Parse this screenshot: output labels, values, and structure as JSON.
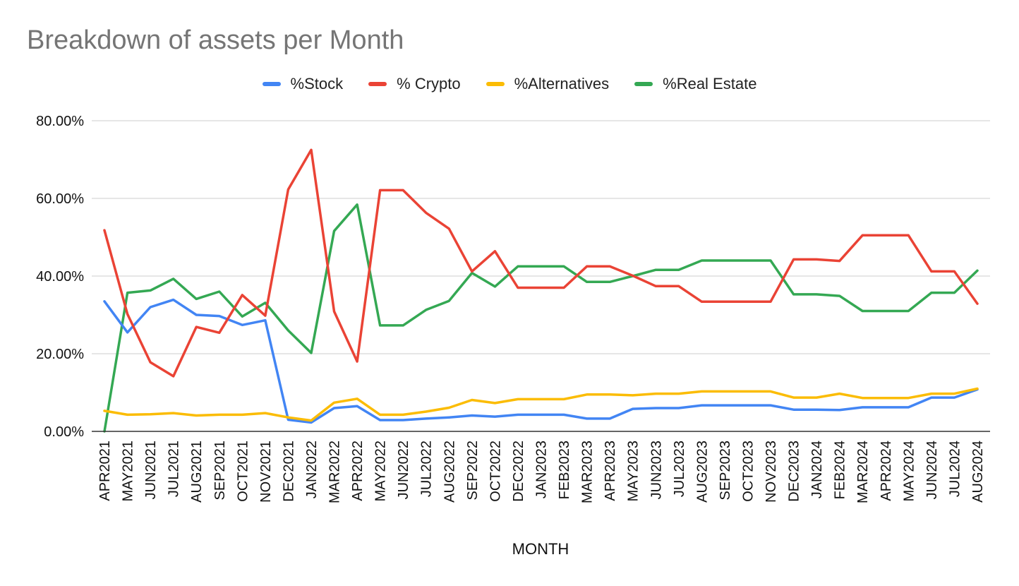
{
  "chart_data": {
    "type": "line",
    "title": "Breakdown of assets per Month",
    "xlabel": "MONTH",
    "ylabel": "",
    "ylim": [
      0,
      80
    ],
    "y_ticks": [
      "0.00%",
      "20.00%",
      "40.00%",
      "60.00%",
      "80.00%"
    ],
    "y_tick_values": [
      0,
      20,
      40,
      60,
      80
    ],
    "grid": true,
    "legend_position": "top",
    "categories": [
      "APR2021",
      "MAY2021",
      "JUN2021",
      "JUL2021",
      "AUG2021",
      "SEP2021",
      "OCT2021",
      "NOV2021",
      "DEC2021",
      "JAN2022",
      "MAR2022",
      "APR2022",
      "MAY2022",
      "JUN2022",
      "JUL2022",
      "AUG2022",
      "SEP2022",
      "OCT2022",
      "DEC2022",
      "JAN2023",
      "FEB2023",
      "MAR2023",
      "APR2023",
      "MAY2023",
      "JUN2023",
      "JUL2023",
      "AUG2023",
      "SEP2023",
      "OCT2023",
      "NOV2023",
      "DEC2023",
      "JAN2024",
      "FEB2024",
      "MAR2024",
      "APR2024",
      "MAY2024",
      "JUN2024",
      "JUL2024",
      "AUG2024"
    ],
    "series": [
      {
        "name": "%Stock",
        "color": "#4285F4",
        "values": [
          33.5,
          25.5,
          32.0,
          33.9,
          30.0,
          29.7,
          27.4,
          28.6,
          3.0,
          2.3,
          6.0,
          6.5,
          2.9,
          2.9,
          3.3,
          3.6,
          4.1,
          3.8,
          4.3,
          4.3,
          4.3,
          3.3,
          3.3,
          5.8,
          6.0,
          6.0,
          6.7,
          6.7,
          6.7,
          6.7,
          5.6,
          5.6,
          5.5,
          6.2,
          6.2,
          6.2,
          8.7,
          8.7,
          10.8
        ]
      },
      {
        "name": "% Crypto",
        "color": "#EA4335",
        "values": [
          51.8,
          30.2,
          17.8,
          14.2,
          26.9,
          25.4,
          35.1,
          29.8,
          62.3,
          72.5,
          30.9,
          18.0,
          62.1,
          62.1,
          56.3,
          52.2,
          41.2,
          46.4,
          37.0,
          37.0,
          37.0,
          42.5,
          42.5,
          40.1,
          37.4,
          37.4,
          33.4,
          33.4,
          33.4,
          33.4,
          44.3,
          44.3,
          43.9,
          50.5,
          50.5,
          50.5,
          41.2,
          41.2,
          32.9
        ]
      },
      {
        "name": "%Alternatives",
        "color": "#FBBC04",
        "values": [
          5.3,
          4.3,
          4.4,
          4.7,
          4.1,
          4.3,
          4.3,
          4.7,
          3.6,
          2.8,
          7.4,
          8.4,
          4.3,
          4.3,
          5.1,
          6.1,
          8.1,
          7.3,
          8.3,
          8.3,
          8.3,
          9.5,
          9.5,
          9.3,
          9.7,
          9.7,
          10.3,
          10.3,
          10.3,
          10.3,
          8.7,
          8.7,
          9.7,
          8.6,
          8.6,
          8.6,
          9.7,
          9.7,
          11.0
        ]
      },
      {
        "name": "%Real Estate",
        "color": "#34A853",
        "values": [
          0.0,
          35.7,
          36.3,
          39.3,
          34.1,
          36.0,
          29.6,
          33.1,
          26.0,
          20.2,
          51.6,
          58.4,
          27.3,
          27.3,
          31.3,
          33.6,
          40.8,
          37.3,
          42.5,
          42.5,
          42.5,
          38.5,
          38.5,
          40.0,
          41.6,
          41.6,
          44.0,
          44.0,
          44.0,
          44.0,
          35.3,
          35.3,
          34.9,
          31.0,
          31.0,
          31.0,
          35.7,
          35.7,
          41.4
        ]
      }
    ]
  }
}
